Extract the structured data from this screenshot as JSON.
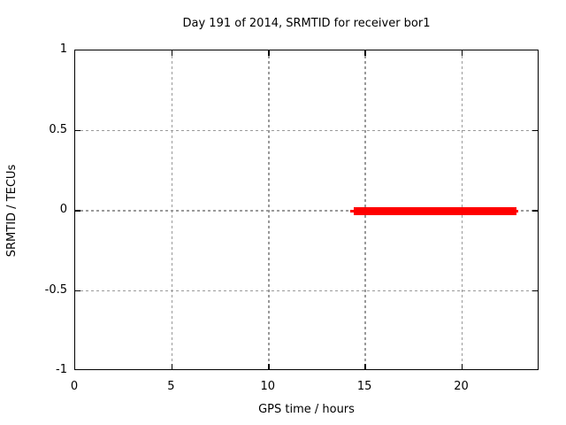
{
  "chart": {
    "title": "Day 191 of 2014, SRMTID for receiver bor1",
    "xlabel": "GPS time / hours",
    "ylabel": "SRMTID / TECUs"
  },
  "chart_data": {
    "type": "line",
    "title": "Day 191 of 2014, SRMTID for receiver bor1",
    "xlabel": "GPS time / hours",
    "ylabel": "SRMTID / TECUs",
    "xlim": [
      0,
      24
    ],
    "ylim": [
      -1,
      1
    ],
    "xticks": [
      0,
      5,
      10,
      15,
      20
    ],
    "yticks": [
      -1,
      -0.5,
      0,
      0.5,
      1
    ],
    "grid": true,
    "legend": "none",
    "series": [
      {
        "name": "SRMTID",
        "color": "#ff0000",
        "x": [
          14.2,
          22.9
        ],
        "y": [
          0,
          0
        ],
        "thick_span": [
          14.4,
          22.8
        ],
        "note": "flat line at y=0 between ~14.2h and ~22.9h; thick body with thin end caps"
      }
    ]
  },
  "colors": {
    "background": "#ffffff",
    "axis": "#000000",
    "grid": "#9a9a9a",
    "series": "#ff0000",
    "text": "#000000"
  }
}
